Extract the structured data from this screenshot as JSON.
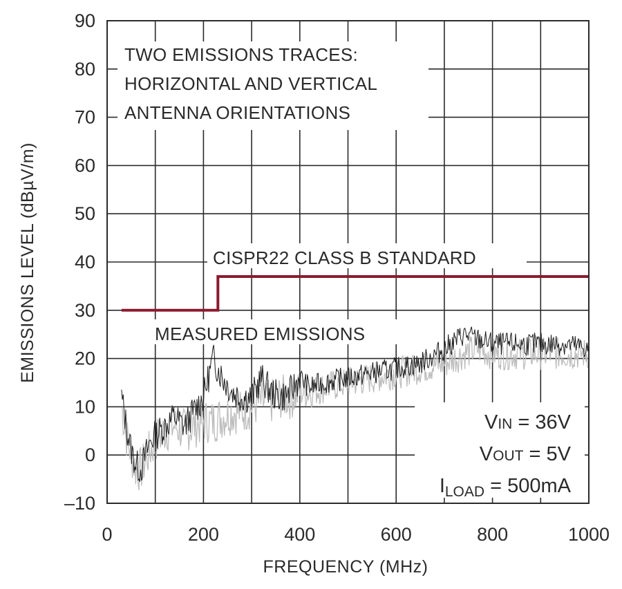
{
  "chart_data": {
    "type": "line",
    "xlabel": "FREQUENCY (MHz)",
    "ylabel": "EMISSIONS LEVEL (dBµV/m)",
    "xlim": [
      0,
      1000
    ],
    "ylim": [
      -10,
      90
    ],
    "x_ticks": [
      "0",
      "200",
      "400",
      "600",
      "800",
      "1000"
    ],
    "y_ticks": [
      "–10",
      "0",
      "10",
      "20",
      "30",
      "40",
      "50",
      "60",
      "70",
      "80",
      "90"
    ],
    "grid": true,
    "colors": {
      "standard": "#8b1a2e",
      "trace_black": "#1a1a1a",
      "trace_gray": "#bdbdbd",
      "grid": "#2a2a2a"
    },
    "series": [
      {
        "name": "CISPR22 CLASS B STANDARD",
        "x": [
          30,
          230,
          230,
          1000
        ],
        "y": [
          30,
          30,
          37,
          37
        ]
      },
      {
        "name": "MEASURED EMISSIONS",
        "x": [
          30,
          40,
          50,
          60,
          70,
          80,
          90,
          100,
          120,
          140,
          160,
          180,
          200,
          220,
          240,
          260,
          280,
          300,
          320,
          340,
          360,
          380,
          400,
          420,
          450,
          500,
          550,
          600,
          650,
          700,
          740,
          770,
          800,
          850,
          900,
          950,
          1000
        ],
        "y": [
          12,
          6,
          1,
          -2,
          -3,
          0,
          3,
          4,
          6,
          8,
          6,
          9,
          12,
          20,
          16,
          13,
          12,
          12,
          16,
          13,
          12,
          13,
          16,
          14,
          15,
          16,
          17,
          18,
          19,
          22,
          25,
          24,
          23,
          23,
          23,
          23,
          22
        ]
      },
      {
        "x": [
          30,
          40,
          50,
          60,
          70,
          80,
          90,
          100,
          120,
          140,
          160,
          180,
          200,
          220,
          240,
          260,
          280,
          300,
          320,
          340,
          360,
          380,
          400,
          420,
          450,
          500,
          550,
          600,
          650,
          700,
          740,
          770,
          800,
          850,
          900,
          950,
          1000
        ],
        "y": [
          10,
          4,
          0,
          -3,
          -3,
          -1,
          1,
          3,
          5,
          6,
          5,
          6,
          7,
          7,
          8,
          9,
          9,
          10,
          11,
          11,
          12,
          12,
          13,
          13,
          14,
          15,
          16,
          17,
          18,
          19,
          21,
          22,
          21,
          21,
          21,
          21,
          21
        ]
      }
    ],
    "annotations": {
      "traces_line1": "TWO EMISSIONS TRACES:",
      "traces_line2": "HORIZONTAL AND VERTICAL",
      "traces_line3": "ANTENNA ORIENTATIONS",
      "standard_label": "CISPR22 CLASS B STANDARD",
      "measured_label": "MEASURED EMISSIONS",
      "vin_main": "V",
      "vin_sub": "IN",
      "vin_value": " = 36V",
      "vout_main": "V",
      "vout_sub": "OUT",
      "vout_value": " = 5V",
      "iload_main": "I",
      "iload_sub": "LOAD",
      "iload_value": " = 500mA"
    }
  }
}
